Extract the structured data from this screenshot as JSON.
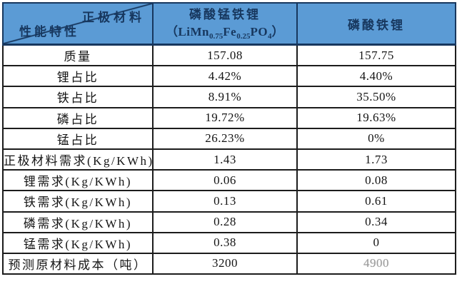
{
  "header": {
    "corner_top_right": "正极材料",
    "corner_bottom_left": "性能特性",
    "col1_title": "磷酸锰铁锂",
    "col1_formula": {
      "p1": "（LiMn",
      "s1": "0.75",
      "p2": "Fe",
      "s2": "0.25",
      "p3": "PO",
      "s3": "4",
      "p4": "）"
    },
    "col2_title": "磷酸铁锂"
  },
  "rows": [
    {
      "label": "质量",
      "v1": "157.08",
      "v2": "157.75"
    },
    {
      "label": "锂占比",
      "v1": "4.42%",
      "v2": "4.40%"
    },
    {
      "label": "铁占比",
      "v1": "8.91%",
      "v2": "35.50%"
    },
    {
      "label": "磷占比",
      "v1": "19.72%",
      "v2": "19.63%"
    },
    {
      "label": "锰占比",
      "v1": "26.23%",
      "v2": "0%"
    },
    {
      "label": "正极材料需求(Kg/KWh)",
      "v1": "1.43",
      "v2": "1.73"
    },
    {
      "label": "锂需求(Kg/KWh)",
      "v1": "0.06",
      "v2": "0.08"
    },
    {
      "label": "铁需求(Kg/KWh)",
      "v1": "0.13",
      "v2": "0.61"
    },
    {
      "label": "磷需求(Kg/KWh)",
      "v1": "0.28",
      "v2": "0.34"
    },
    {
      "label": "锰需求(Kg/KWh)",
      "v1": "0.38",
      "v2": "0"
    },
    {
      "label": "预测原材料成本（吨）",
      "v1": "3200",
      "v2": "4900"
    }
  ],
  "colors": {
    "header_bg": "#5B9BD5",
    "header_text": "#17375E",
    "border": "#1c1c1c",
    "body_text": "#141414",
    "faded_value": "#9b9b9b"
  },
  "chart_data": {
    "type": "table",
    "title": "正极材料性能特性对比",
    "corner_headers": {
      "columns_axis": "正极材料",
      "rows_axis": "性能特性"
    },
    "columns": [
      "磷酸锰铁锂（LiMn0.75Fe0.25PO4）",
      "磷酸铁锂"
    ],
    "categories": [
      "质量",
      "锂占比",
      "铁占比",
      "磷占比",
      "锰占比",
      "正极材料需求(Kg/KWh)",
      "锂需求(Kg/KWh)",
      "铁需求(Kg/KWh)",
      "磷需求(Kg/KWh)",
      "锰需求(Kg/KWh)",
      "预测原材料成本（吨）"
    ],
    "series": [
      {
        "name": "磷酸锰铁锂（LiMn0.75Fe0.25PO4）",
        "values": [
          "157.08",
          "4.42%",
          "8.91%",
          "19.72%",
          "26.23%",
          "1.43",
          "0.06",
          "0.13",
          "0.28",
          "0.38",
          "3200"
        ]
      },
      {
        "name": "磷酸铁锂",
        "values": [
          "157.75",
          "4.40%",
          "35.50%",
          "19.63%",
          "0%",
          "1.73",
          "0.08",
          "0.61",
          "0.34",
          "0",
          "4900"
        ]
      }
    ]
  }
}
